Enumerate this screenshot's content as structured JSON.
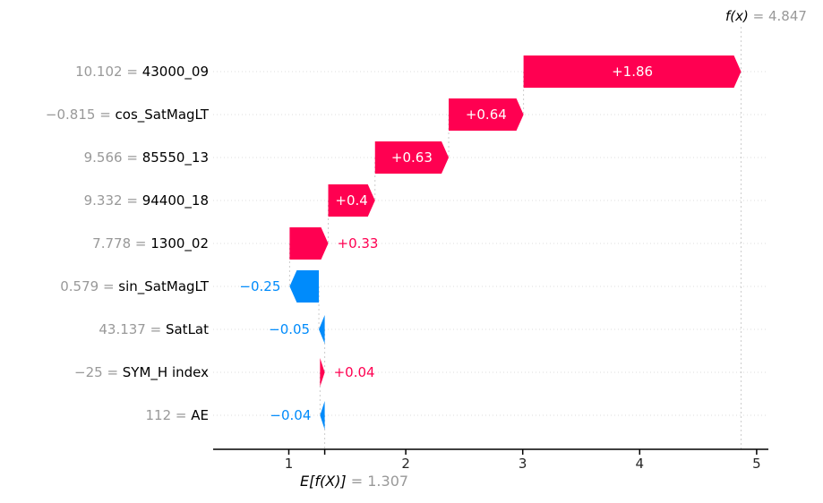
{
  "figure": {
    "fx_label": {
      "math": "f(x)",
      "value": " = 4.847"
    },
    "base_label": {
      "math": "E[f(X)]",
      "value": " = 1.307"
    },
    "separator": " = "
  },
  "chart_data": {
    "type": "waterfall",
    "library_style": "shap-waterfall",
    "title": "",
    "xlabel": "",
    "ylabel": "",
    "base_value": 1.307,
    "fx_value": 4.847,
    "xticks": [
      1,
      2,
      3,
      4,
      5
    ],
    "x_axis_range": [
      0.35,
      5.1
    ],
    "grid": "dotted horizontal per row",
    "colors": {
      "positive": "#ff0051",
      "negative": "#008bfb",
      "muted_text": "#999999",
      "dashed_line": "#cccccc",
      "gridline": "#dddddd",
      "axis": "#000000"
    },
    "features": [
      {
        "data_value": "10.102",
        "name": "43000_09",
        "shap": 1.86,
        "shap_label": "+1.86"
      },
      {
        "data_value": "−0.815",
        "name": "cos_SatMagLT",
        "shap": 0.64,
        "shap_label": "+0.64"
      },
      {
        "data_value": "9.566",
        "name": "85550_13",
        "shap": 0.63,
        "shap_label": "+0.63"
      },
      {
        "data_value": "9.332",
        "name": "94400_18",
        "shap": 0.4,
        "shap_label": "+0.4"
      },
      {
        "data_value": "7.778",
        "name": "1300_02",
        "shap": 0.33,
        "shap_label": "+0.33"
      },
      {
        "data_value": "0.579",
        "name": "sin_SatMagLT",
        "shap": -0.25,
        "shap_label": "−0.25"
      },
      {
        "data_value": "43.137",
        "name": "SatLat",
        "shap": -0.05,
        "shap_label": "−0.05"
      },
      {
        "data_value": "−25",
        "name": "SYM_H index",
        "shap": 0.04,
        "shap_label": "+0.04"
      },
      {
        "data_value": "112",
        "name": "AE",
        "shap": -0.04,
        "shap_label": "−0.04"
      }
    ]
  }
}
